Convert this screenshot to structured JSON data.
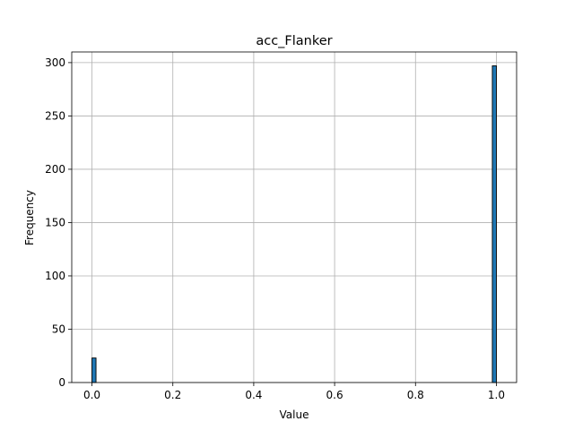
{
  "chart_data": {
    "type": "bar",
    "title": "acc_Flanker",
    "xlabel": "Value",
    "ylabel": "Frequency",
    "xlim": [
      -0.05,
      1.05
    ],
    "ylim": [
      0,
      310
    ],
    "xticks": [
      0.0,
      0.2,
      0.4,
      0.6,
      0.8,
      1.0
    ],
    "xtick_labels": [
      "0.0",
      "0.2",
      "0.4",
      "0.6",
      "0.8",
      "1.0"
    ],
    "yticks": [
      0,
      50,
      100,
      150,
      200,
      250,
      300
    ],
    "ytick_labels": [
      "0",
      "50",
      "100",
      "150",
      "200",
      "250",
      "300"
    ],
    "grid": true,
    "bar_color": "#1f77b4",
    "bins": [
      {
        "x0": 0.0,
        "x1": 0.01,
        "count": 23
      },
      {
        "x0": 0.99,
        "x1": 1.0,
        "count": 297
      }
    ]
  }
}
